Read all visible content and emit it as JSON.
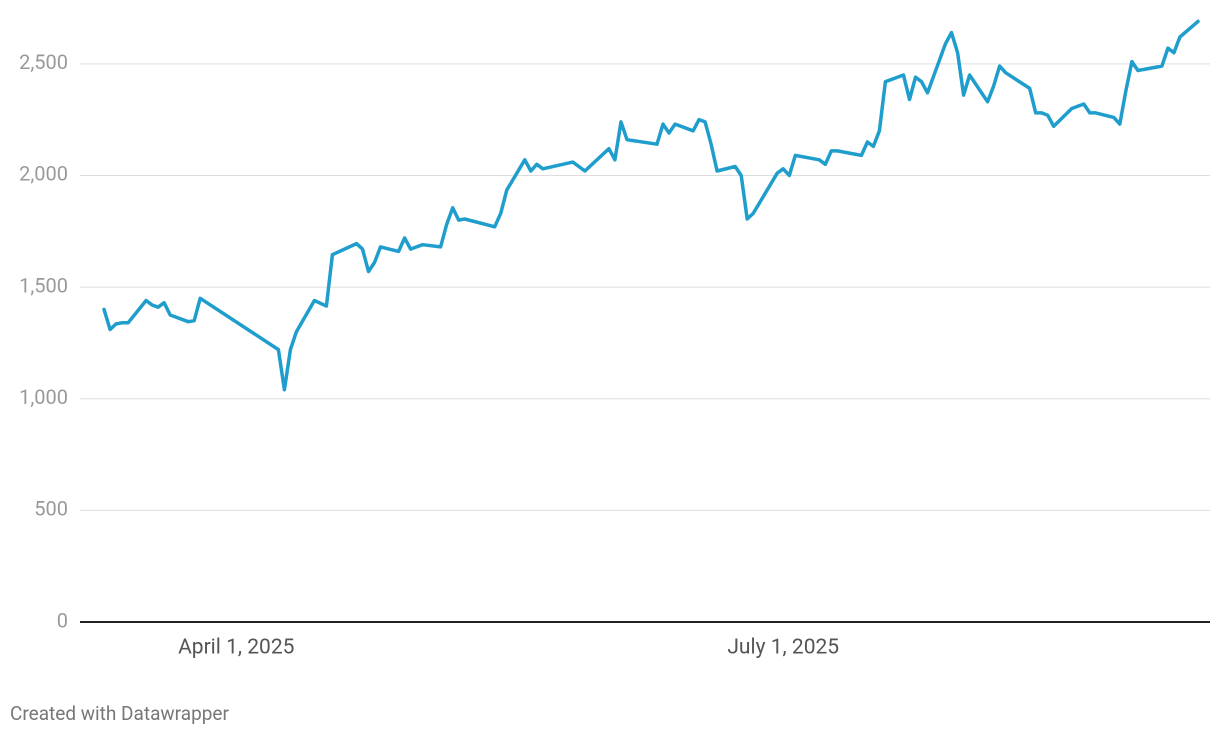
{
  "chart_data": {
    "type": "line",
    "x": [
      "2025-03-10",
      "2025-03-11",
      "2025-03-12",
      "2025-03-13",
      "2025-03-14",
      "2025-03-17",
      "2025-03-18",
      "2025-03-19",
      "2025-03-20",
      "2025-03-21",
      "2025-03-24",
      "2025-03-25",
      "2025-03-26",
      "2025-04-08",
      "2025-04-09",
      "2025-04-10",
      "2025-04-11",
      "2025-04-14",
      "2025-04-16",
      "2025-04-17",
      "2025-04-21",
      "2025-04-22",
      "2025-04-23",
      "2025-04-24",
      "2025-04-25",
      "2025-04-28",
      "2025-04-29",
      "2025-04-30",
      "2025-05-01",
      "2025-05-02",
      "2025-05-05",
      "2025-05-06",
      "2025-05-07",
      "2025-05-08",
      "2025-05-09",
      "2025-05-14",
      "2025-05-15",
      "2025-05-16",
      "2025-05-19",
      "2025-05-20",
      "2025-05-21",
      "2025-05-22",
      "2025-05-27",
      "2025-05-29",
      "2025-06-02",
      "2025-06-03",
      "2025-06-04",
      "2025-06-05",
      "2025-06-10",
      "2025-06-11",
      "2025-06-12",
      "2025-06-13",
      "2025-06-16",
      "2025-06-17",
      "2025-06-18",
      "2025-06-19",
      "2025-06-20",
      "2025-06-23",
      "2025-06-24",
      "2025-06-25",
      "2025-06-26",
      "2025-06-30",
      "2025-07-01",
      "2025-07-02",
      "2025-07-03",
      "2025-07-07",
      "2025-07-08",
      "2025-07-09",
      "2025-07-10",
      "2025-07-14",
      "2025-07-15",
      "2025-07-16",
      "2025-07-17",
      "2025-07-18",
      "2025-07-21",
      "2025-07-22",
      "2025-07-23",
      "2025-07-24",
      "2025-07-25",
      "2025-07-28",
      "2025-07-29",
      "2025-07-30",
      "2025-07-31",
      "2025-08-01",
      "2025-08-04",
      "2025-08-05",
      "2025-08-06",
      "2025-08-07",
      "2025-08-11",
      "2025-08-12",
      "2025-08-13",
      "2025-08-14",
      "2025-08-15",
      "2025-08-18",
      "2025-08-19",
      "2025-08-20",
      "2025-08-21",
      "2025-08-22",
      "2025-08-25",
      "2025-08-26",
      "2025-08-27",
      "2025-08-28",
      "2025-08-29",
      "2025-09-02",
      "2025-09-03",
      "2025-09-04",
      "2025-09-05",
      "2025-09-08"
    ],
    "values": [
      1400,
      1310,
      1335,
      1340,
      1340,
      1440,
      1420,
      1410,
      1430,
      1375,
      1345,
      1350,
      1450,
      1220,
      1040,
      1220,
      1300,
      1440,
      1415,
      1645,
      1695,
      1670,
      1570,
      1610,
      1680,
      1660,
      1720,
      1670,
      1680,
      1690,
      1680,
      1780,
      1855,
      1800,
      1805,
      1770,
      1830,
      1935,
      2070,
      2020,
      2050,
      2030,
      2060,
      2020,
      2120,
      2070,
      2240,
      2160,
      2140,
      2230,
      2190,
      2230,
      2200,
      2250,
      2240,
      2140,
      2020,
      2040,
      2000,
      1805,
      1830,
      2010,
      2030,
      2000,
      2090,
      2070,
      2050,
      2110,
      2110,
      2090,
      2150,
      2130,
      2200,
      2420,
      2450,
      2340,
      2440,
      2420,
      2370,
      2590,
      2640,
      2550,
      2360,
      2450,
      2330,
      2400,
      2490,
      2460,
      2390,
      2280,
      2280,
      2270,
      2220,
      2300,
      2310,
      2320,
      2280,
      2280,
      2260,
      2230,
      2380,
      2510,
      2470,
      2490,
      2570,
      2550,
      2620,
      2690
    ],
    "color": "#1f9ecd",
    "xlim": [
      "2025-03-06",
      "2025-09-10"
    ],
    "xticks": [
      {
        "value": "2025-04-01",
        "label": "April 1, 2025"
      },
      {
        "value": "2025-07-01",
        "label": "July 1, 2025"
      }
    ],
    "ylim": [
      0,
      2750
    ],
    "yticks": [
      0,
      500,
      {
        "value": 1000,
        "label": "1,000"
      },
      {
        "value": 1500,
        "label": "1,500"
      },
      {
        "value": 2000,
        "label": "2,000"
      },
      {
        "value": 2500,
        "label": "2,500"
      }
    ],
    "grid": true,
    "credit": "Created with Datawrapper"
  }
}
